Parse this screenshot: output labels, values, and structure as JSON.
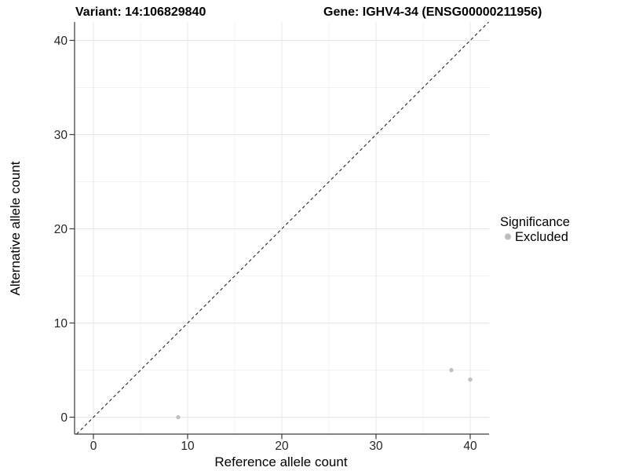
{
  "window": {
    "background": "#ffffff"
  },
  "chart_data": {
    "type": "scatter",
    "title_left": "Variant: 14:106829840",
    "title_right": "Gene: IGHV4-34 (ENSG00000211956)",
    "xlabel": "Reference allele count",
    "ylabel": "Alternative allele count",
    "xlim": [
      -2,
      42
    ],
    "ylim": [
      -2,
      42
    ],
    "x_ticks": [
      0,
      10,
      20,
      30,
      40
    ],
    "y_ticks": [
      0,
      10,
      20,
      30,
      40
    ],
    "x_minor_ticks": [
      5,
      15,
      25,
      35
    ],
    "y_minor_ticks": [
      5,
      15,
      25,
      35
    ],
    "grid": "major-and-minor",
    "identity_line": {
      "type": "abline",
      "slope": 1,
      "intercept": 0,
      "style": "dashed",
      "color": "#262626"
    },
    "series": [
      {
        "name": "Excluded",
        "color": "#c0c0c0",
        "point_radius": 2.7,
        "points": [
          {
            "x": 9,
            "y": 0
          },
          {
            "x": 38,
            "y": 5
          },
          {
            "x": 40,
            "y": 4
          }
        ]
      }
    ],
    "legend": {
      "position": "right",
      "title": "Significance",
      "items": [
        {
          "label": "Excluded",
          "color": "#bdbdbd"
        }
      ]
    },
    "colors": {
      "grid_major": "#e7e7e7",
      "grid_minor": "#f2f2f2",
      "axis": "#3a3a3a",
      "tick_label": "#262626",
      "text": "#000000",
      "background": "#ffffff"
    }
  }
}
